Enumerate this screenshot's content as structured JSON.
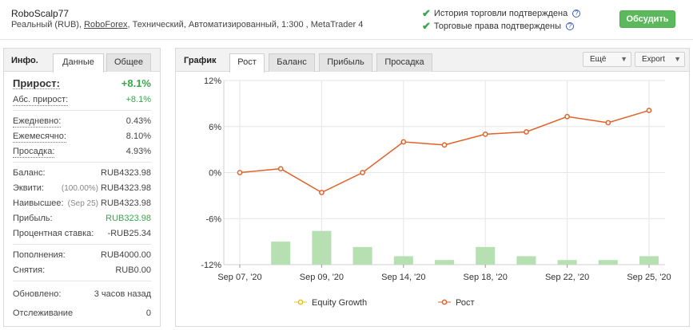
{
  "header": {
    "account_name": "RoboScalp77",
    "desc_prefix": "Реальный (RUB), ",
    "broker_link": "RoboForex",
    "desc_suffix": ", Технический, Автоматизированный, 1:300 , MetaTrader 4",
    "verified_history": "История торговли подтверждена",
    "verified_privileges": "Торговые права подтверждены",
    "help_glyph": "?",
    "discuss_button": "Обсудить"
  },
  "left_panel": {
    "title": "Инфо.",
    "tabs": [
      "Данные",
      "Общее"
    ],
    "growth_label": "Прирост:",
    "growth_value": "+8.1%",
    "abs_growth_label": "Абс. прирост:",
    "abs_growth_value": "+8.1%",
    "daily_label": "Ежедневно:",
    "daily_value": "0.43%",
    "monthly_label": "Ежемесячно:",
    "monthly_value": "8.10%",
    "drawdown_label": "Просадка:",
    "drawdown_value": "4.93%",
    "balance_label": "Баланс:",
    "balance_value": "RUB4323.98",
    "equity_label": "Эквити:",
    "equity_pct": "(100.00%)",
    "equity_value": "RUB4323.98",
    "highest_label": "Наивысшее:",
    "highest_date": "(Sep 25)",
    "highest_value": "RUB4323.98",
    "profit_label": "Прибыль:",
    "profit_value": "RUB323.98",
    "interest_label": "Процентная ставка:",
    "interest_value": "-RUB25.34",
    "deposits_label": "Пополнения:",
    "deposits_value": "RUB4000.00",
    "withdrawals_label": "Снятия:",
    "withdrawals_value": "RUB0.00",
    "updated_label": "Обновлено:",
    "updated_value": "3 часов назад",
    "tracking_label": "Отслеживание",
    "tracking_value": "0"
  },
  "right_panel": {
    "title": "График",
    "tabs": [
      "Рост",
      "Баланс",
      "Прибыль",
      "Просадка"
    ],
    "more_dropdown": "Ещё",
    "export_dropdown": "Export",
    "dropdown_arrow": "▼"
  },
  "chart_data": {
    "type": "line",
    "y_ticks": [
      "12%",
      "6%",
      "0%",
      "-6%",
      "-12%"
    ],
    "ylim": [
      -12,
      12
    ],
    "x_tick_labels": [
      {
        "label": "Sep 07, '20",
        "index": 0
      },
      {
        "label": "Sep 09, '20",
        "index": 2
      },
      {
        "label": "Sep 14, '20",
        "index": 4
      },
      {
        "label": "Sep 18, '20",
        "index": 6
      },
      {
        "label": "Sep 22, '20",
        "index": 8
      },
      {
        "label": "Sep 25, '20",
        "index": 10
      }
    ],
    "series": [
      {
        "name": "Equity Growth",
        "color": "#e8c21c",
        "values": []
      },
      {
        "name": "Рост",
        "color": "#e0622a",
        "values": [
          0,
          0.5,
          -2.6,
          0,
          4,
          3.6,
          5,
          5.3,
          7.3,
          6.5,
          8.1
        ]
      }
    ],
    "bars": {
      "color": "#b6e0b1",
      "baseline": -12,
      "values": [
        -12,
        -9,
        -7.6,
        -9.7,
        -10.9,
        -11.4,
        -9.7,
        -10.9,
        -11.4,
        -11.4,
        -10.9
      ]
    },
    "grid": true,
    "legend_position": "bottom"
  }
}
